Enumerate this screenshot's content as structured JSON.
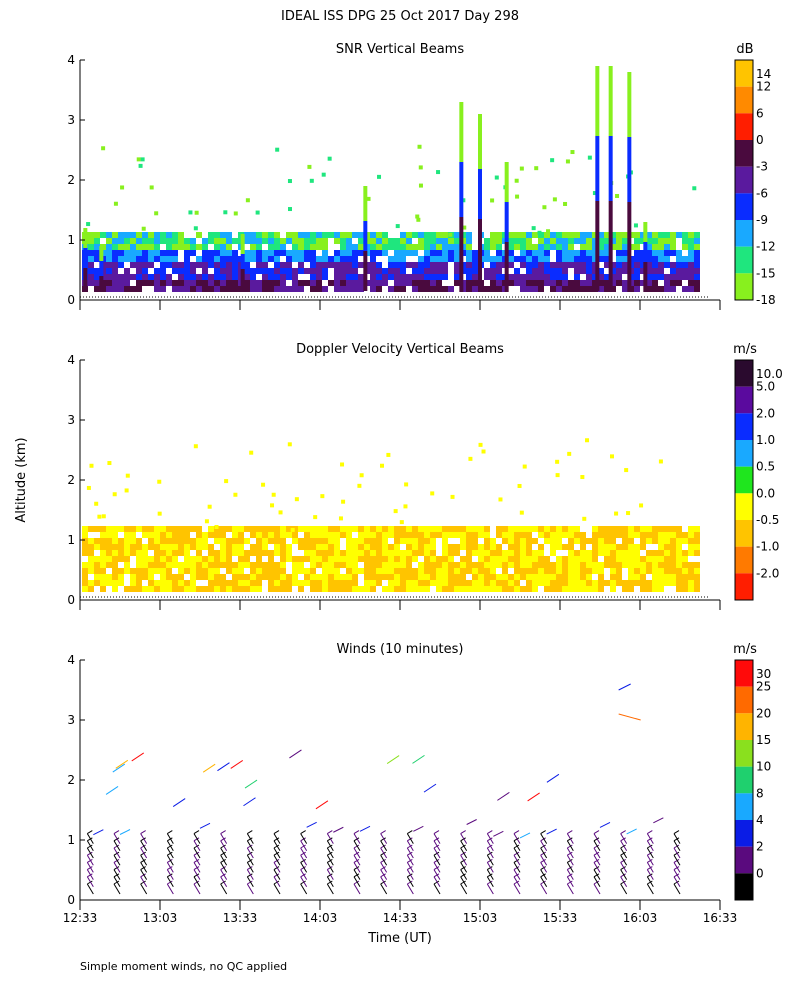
{
  "main_title": "IDEAL ISS DPG  25 Oct 2017 Day 298",
  "footer_note": "Simple moment winds, no QC applied",
  "shared_ylabel": "Altitude (km)",
  "shared_xlabel": "Time (UT)",
  "x_ticks": [
    "12:33",
    "13:03",
    "13:33",
    "14:03",
    "14:33",
    "15:03",
    "15:33",
    "16:03",
    "16:33"
  ],
  "chart_data": [
    {
      "type": "heatmap",
      "title": "SNR Vertical Beams",
      "xlabel": "",
      "ylabel": "Altitude (km)",
      "xlim": [
        "12:33",
        "16:33"
      ],
      "ylim": [
        0,
        4
      ],
      "y_ticks": [
        0,
        1,
        2,
        3,
        4
      ],
      "colorbar": {
        "unit": "dB",
        "labels": [
          "14",
          "12",
          "6",
          "0",
          "-3",
          "-6",
          "-9",
          "-12",
          "-15",
          "-18"
        ],
        "colors": [
          "#FFC400",
          "#FF8A00",
          "#FF1E00",
          "#4A0A3E",
          "#5A1A9E",
          "#0A2CFF",
          "#19A9FF",
          "#1FE67E",
          "#88F01E"
        ]
      },
      "features": {
        "data_end_time": "16:25",
        "main_layer_top_km": 1.0,
        "plumes": [
          {
            "time": "12:35",
            "top_km": 1.2
          },
          {
            "time": "12:41",
            "top_km": 0.9
          },
          {
            "time": "13:34",
            "top_km": 1.1
          },
          {
            "time": "14:20",
            "top_km": 1.9
          },
          {
            "time": "14:56",
            "top_km": 3.3
          },
          {
            "time": "15:03",
            "top_km": 3.1
          },
          {
            "time": "15:13",
            "top_km": 2.3
          },
          {
            "time": "15:47",
            "top_km": 3.9
          },
          {
            "time": "15:52",
            "top_km": 3.9
          },
          {
            "time": "15:59",
            "top_km": 3.8
          },
          {
            "time": "16:05",
            "top_km": 1.3
          }
        ]
      }
    },
    {
      "type": "heatmap",
      "title": "Doppler Velocity Vertical Beams",
      "xlabel": "",
      "ylabel": "Altitude (km)",
      "xlim": [
        "12:33",
        "16:33"
      ],
      "ylim": [
        0,
        4
      ],
      "y_ticks": [
        0,
        1,
        2,
        3,
        4
      ],
      "colorbar": {
        "unit": "m/s",
        "labels": [
          "10.0",
          "5.0",
          "2.0",
          "1.0",
          "0.5",
          "0.0",
          "-0.5",
          "-1.0",
          "-2.0"
        ],
        "colors": [
          "#2A0A2E",
          "#5A0A9E",
          "#0A2CFF",
          "#19A9FF",
          "#1FE61E",
          "#FFFF00",
          "#FFC400",
          "#FF7A00",
          "#FF1E00"
        ]
      },
      "features": {
        "data_end_time": "16:25",
        "main_layer_top_km": 1.1,
        "dominant_values": [
          "0.0",
          "-0.5"
        ]
      }
    },
    {
      "type": "barbs",
      "title": "Winds (10 minutes)",
      "xlabel": "Time (UT)",
      "ylabel": "Altitude (km)",
      "xlim": [
        "12:33",
        "16:33"
      ],
      "ylim": [
        0,
        4
      ],
      "y_ticks": [
        0,
        1,
        2,
        3,
        4
      ],
      "colorbar": {
        "unit": "m/s",
        "labels": [
          "30",
          "25",
          "20",
          "15",
          "10",
          "8",
          "4",
          "2",
          "0"
        ],
        "colors": [
          "#FF0A0A",
          "#FF6A00",
          "#FFB400",
          "#8AE01E",
          "#1FD06E",
          "#19A9FF",
          "#0A1CE6",
          "#5A0A7E",
          "#000000"
        ]
      },
      "profile_times": [
        "12:38",
        "12:48",
        "12:58",
        "13:08",
        "13:18",
        "13:28",
        "13:38",
        "13:48",
        "13:58",
        "14:08",
        "14:18",
        "14:28",
        "14:38",
        "14:48",
        "14:58",
        "15:08",
        "15:18",
        "15:28",
        "15:38",
        "15:48",
        "15:58",
        "16:08",
        "16:18"
      ]
    }
  ]
}
